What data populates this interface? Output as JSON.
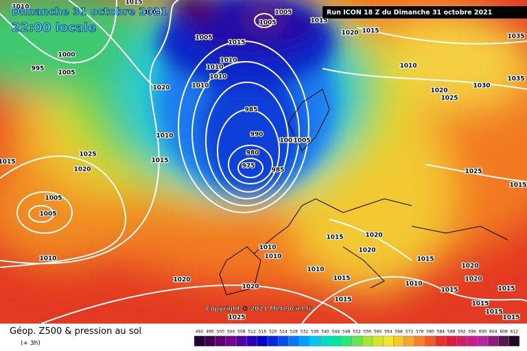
{
  "header": {
    "date": "Dimanche 31 octobre 2021",
    "time": "22:00 locale",
    "run": "Run ICON 18 Z du Dimanche 31 octobre 2021"
  },
  "map": {
    "copyright": "Copyright © 2021 Meteociel.fr",
    "isobar_labels": [
      1010,
      1015,
      1005,
      1005,
      1005,
      1015,
      1020,
      1015,
      1005,
      1015,
      1010,
      1010,
      1010,
      1010,
      1000,
      995,
      1005,
      1020,
      1010,
      1020,
      1025,
      1030,
      1035,
      1035,
      985,
      990,
      980,
      975,
      985,
      1005,
      1005,
      1010,
      1025,
      1015,
      1020,
      1015,
      1005,
      1005,
      1025,
      1015,
      1010,
      1010,
      1010,
      1015,
      1020,
      1020,
      1010,
      1015,
      1015,
      1020,
      1020,
      1020,
      1020,
      1010,
      1015,
      1015,
      1015,
      1015,
      1015,
      1015,
      1025
    ]
  },
  "legend": {
    "title": "Géop. Z500 & pression au sol",
    "subtitle": "(+ 3h)",
    "values": [
      492,
      496,
      500,
      504,
      508,
      512,
      516,
      520,
      524,
      528,
      532,
      536,
      540,
      544,
      548,
      552,
      556,
      560,
      564,
      568,
      572,
      576,
      580,
      584,
      588,
      592,
      596,
      600,
      604,
      608,
      612
    ],
    "colors": [
      "#1e0033",
      "#3c0050",
      "#5a006e",
      "#780090",
      "#5000a0",
      "#2800b4",
      "#0000c8",
      "#0028dc",
      "#0050f0",
      "#0078ff",
      "#00a0ff",
      "#00c8f0",
      "#00dcc8",
      "#00e6a0",
      "#28e678",
      "#64e650",
      "#a0e632",
      "#d2e628",
      "#f0e628",
      "#f5c828",
      "#f5a528",
      "#f58228",
      "#f05a28",
      "#e63228",
      "#dc1e3c",
      "#d21e64",
      "#c81e8c",
      "#b4289b",
      "#8c1e78",
      "#5a1450",
      "#1e0a1e"
    ]
  }
}
